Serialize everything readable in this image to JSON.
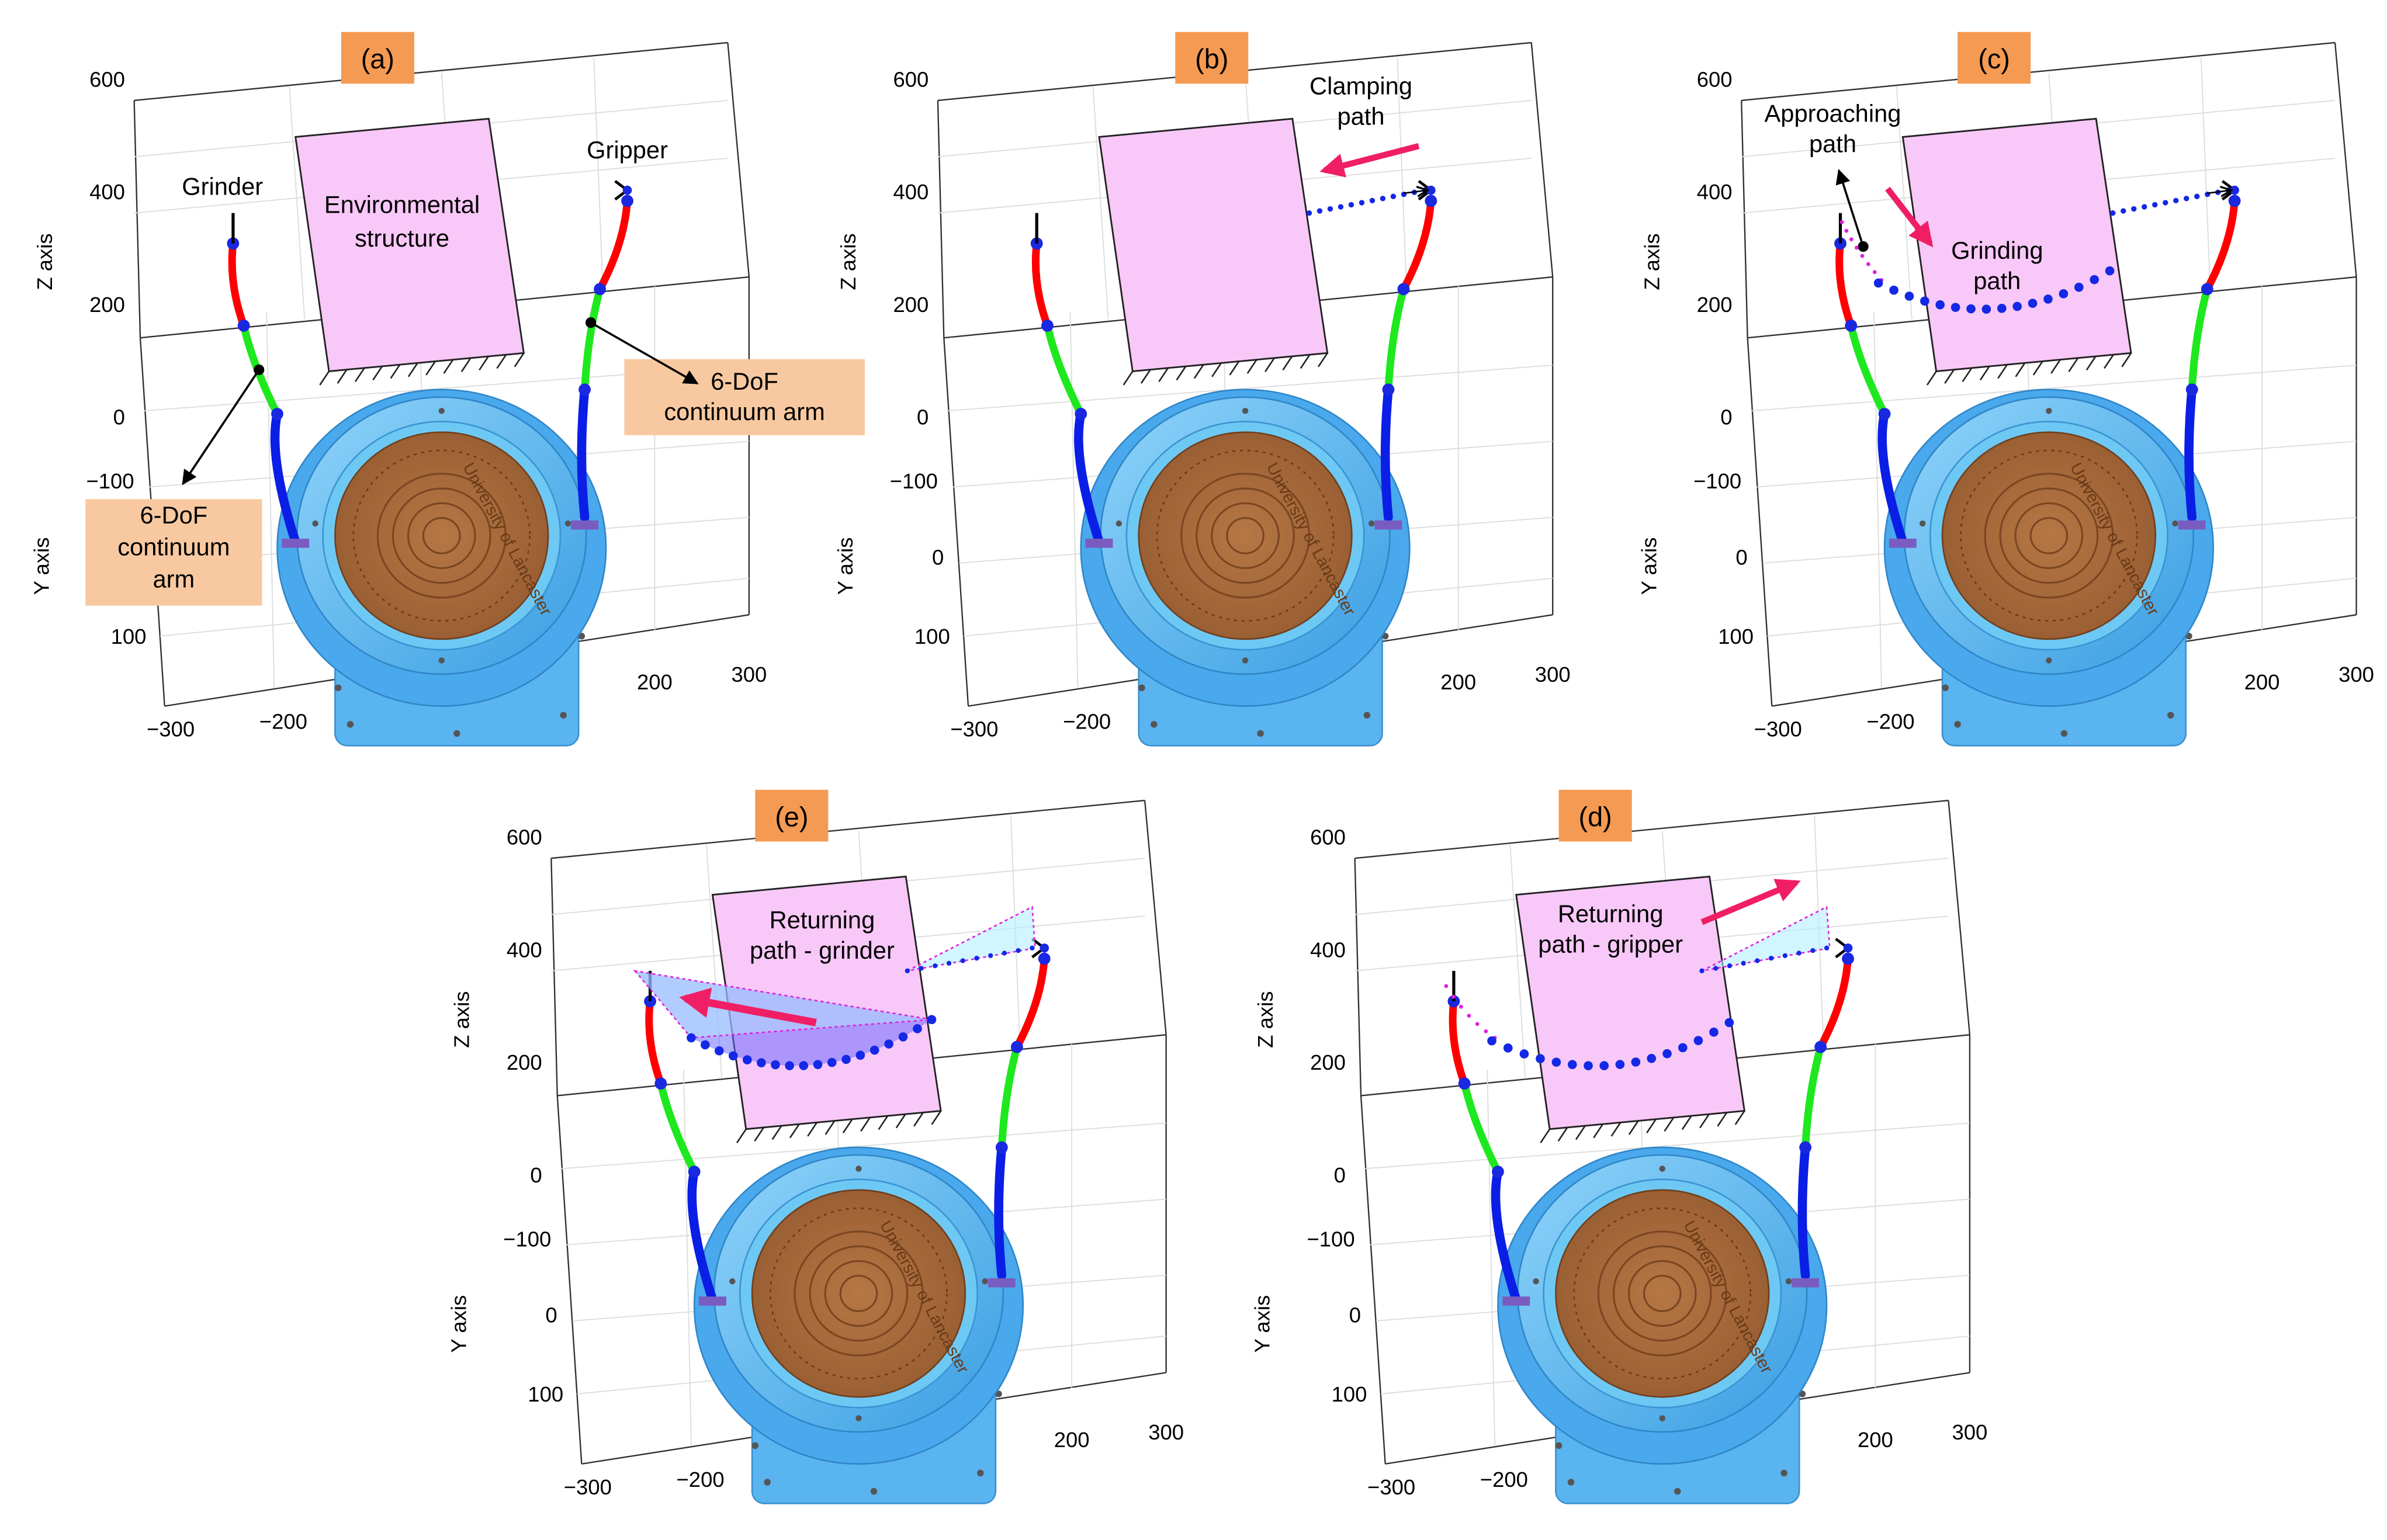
{
  "axes": {
    "z_label": "Z axis",
    "y_label": "Y axis",
    "z_ticks": [
      "600",
      "400",
      "200",
      "0"
    ],
    "y_ticks": [
      "−100",
      "0",
      "100"
    ],
    "x_ticks": [
      "−300",
      "−200",
      "200",
      "300"
    ]
  },
  "robot": {
    "badge_text": "University of Lancaster"
  },
  "colors": {
    "section_red": "#ff0000",
    "section_green": "#1ee81e",
    "section_blue": "#0a1ee6",
    "joint_blue": "#1a28e0",
    "structure_fill": "#f8c8f8",
    "label_box": "#f8c9a0",
    "tag_box": "#f59a52",
    "arrow_pink": "#f01e64",
    "path_blue": "#1428e6",
    "path_magenta": "#e020e0",
    "base_blue": "#5ab4f0",
    "disk_brown": "#a8693c"
  },
  "panels": [
    {
      "key": "a",
      "tag": "(a)",
      "labels": {
        "grinder": "Grinder",
        "gripper": "Gripper",
        "structure_line1": "Environmental",
        "structure_line2": "structure",
        "left_box_line1": "6-DoF",
        "left_box_line2": "continuum",
        "left_box_line3": "arm",
        "right_box_line1": "6-DoF",
        "right_box_line2": "continuum arm"
      }
    },
    {
      "key": "b",
      "tag": "(b)",
      "labels": {
        "clamping_line1": "Clamping",
        "clamping_line2": "path"
      }
    },
    {
      "key": "c",
      "tag": "(c)",
      "labels": {
        "approaching_line1": "Approaching",
        "approaching_line2": "path",
        "grinding_line1": "Grinding",
        "grinding_line2": "path"
      }
    },
    {
      "key": "e",
      "tag": "(e)",
      "labels": {
        "returning_line1": "Returning",
        "returning_line2": "path - grinder"
      }
    },
    {
      "key": "d",
      "tag": "(d)",
      "labels": {
        "returning_line1": "Returning",
        "returning_line2": "path - gripper"
      }
    }
  ]
}
